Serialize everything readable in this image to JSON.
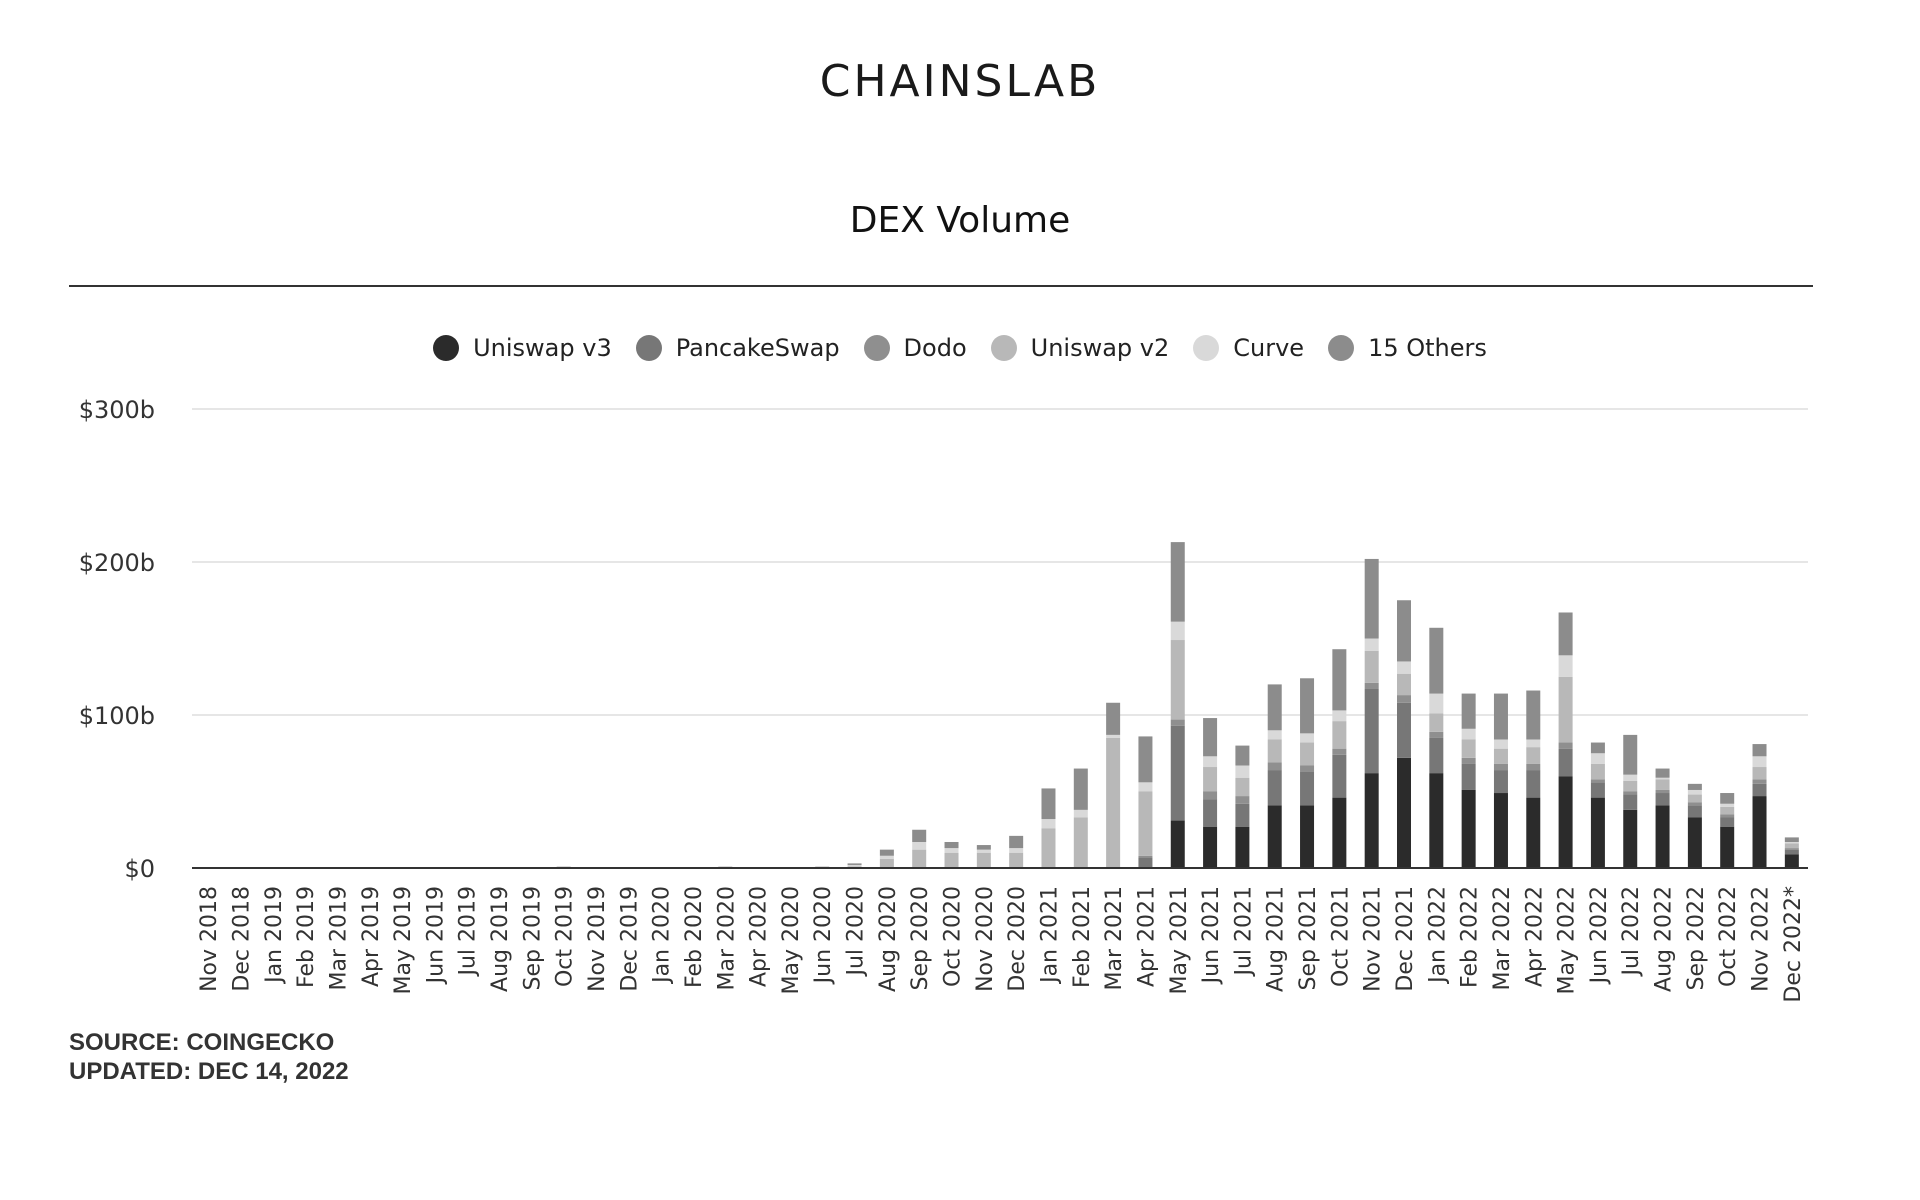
{
  "logo_text": "CHAINSLAB",
  "chart_data": {
    "type": "bar",
    "stacked": true,
    "title": "DEX Volume",
    "xlabel": "",
    "ylabel": "",
    "ylim": [
      0,
      300
    ],
    "yticks": [
      0,
      100,
      200,
      300
    ],
    "ytick_labels": [
      "$0",
      "$100b",
      "$200b",
      "$300b"
    ],
    "grid": true,
    "legend_position": "top-center",
    "categories": [
      "Nov 2018",
      "Dec 2018",
      "Jan 2019",
      "Feb 2019",
      "Mar 2019",
      "Apr 2019",
      "May 2019",
      "Jun 2019",
      "Jul 2019",
      "Aug 2019",
      "Sep 2019",
      "Oct 2019",
      "Nov 2019",
      "Dec 2019",
      "Jan 2020",
      "Feb 2020",
      "Mar 2020",
      "Apr 2020",
      "May 2020",
      "Jun 2020",
      "Jul 2020",
      "Aug 2020",
      "Sep 2020",
      "Oct 2020",
      "Nov 2020",
      "Dec 2020",
      "Jan 2021",
      "Feb 2021",
      "Mar 2021",
      "Apr 2021",
      "May 2021",
      "Jun 2021",
      "Jul 2021",
      "Aug 2021",
      "Sep 2021",
      "Oct 2021",
      "Nov 2021",
      "Dec 2021",
      "Jan 2022",
      "Feb 2022",
      "Mar 2022",
      "Apr 2022",
      "May 2022",
      "Jun 2022",
      "Jul 2022",
      "Aug 2022",
      "Sep 2022",
      "Oct 2022",
      "Nov 2022",
      "Dec 2022*"
    ],
    "series": [
      {
        "name": "Uniswap v3",
        "color": "#2b2b2b",
        "values": [
          0,
          0,
          0,
          0,
          0,
          0,
          0,
          0,
          0,
          0,
          0,
          0,
          0,
          0,
          0,
          0,
          0,
          0,
          0,
          0,
          0,
          0,
          0,
          0,
          0,
          0,
          0,
          0,
          0,
          0,
          31,
          27,
          27,
          41,
          41,
          46,
          62,
          72,
          62,
          51,
          49,
          46,
          60,
          46,
          38,
          41,
          33,
          27,
          47,
          9
        ]
      },
      {
        "name": "PancakeSwap",
        "color": "#777777",
        "values": [
          0,
          0,
          0,
          0,
          0,
          0,
          0,
          0,
          0,
          0,
          0,
          0,
          0,
          0,
          0,
          0,
          0,
          0,
          0,
          0,
          0,
          0,
          0,
          0,
          0,
          0,
          0,
          0,
          0,
          7,
          62,
          18,
          15,
          23,
          22,
          28,
          55,
          36,
          23,
          17,
          15,
          18,
          18,
          10,
          10,
          8,
          8,
          6,
          8,
          3
        ]
      },
      {
        "name": "Dodo",
        "color": "#8f8f8f",
        "values": [
          0,
          0,
          0,
          0,
          0,
          0,
          0,
          0,
          0,
          0,
          0,
          0,
          0,
          0,
          0,
          0,
          0,
          0,
          0,
          0,
          0,
          0,
          0,
          0,
          0,
          0,
          0,
          0,
          0,
          1,
          4,
          5,
          5,
          5,
          4,
          4,
          4,
          5,
          4,
          4,
          4,
          4,
          4,
          2,
          2,
          2,
          2,
          2,
          3,
          1
        ]
      },
      {
        "name": "Uniswap v2",
        "color": "#b8b8b8",
        "values": [
          0,
          0,
          0,
          0,
          0,
          0,
          0,
          0,
          0,
          0,
          0,
          1,
          0,
          0,
          0,
          0,
          1,
          0,
          0,
          1,
          1,
          6,
          12,
          10,
          10,
          10,
          26,
          33,
          85,
          42,
          52,
          16,
          12,
          15,
          15,
          18,
          21,
          14,
          12,
          12,
          10,
          11,
          43,
          10,
          7,
          7,
          5,
          5,
          8,
          3
        ]
      },
      {
        "name": "Curve",
        "color": "#d9d9d9",
        "values": [
          0,
          0,
          0,
          0,
          0,
          0,
          0,
          0,
          0,
          0,
          0,
          0,
          0,
          0,
          0,
          0,
          0,
          0,
          0,
          0,
          1,
          2,
          5,
          3,
          2,
          3,
          6,
          5,
          2,
          6,
          12,
          7,
          8,
          6,
          6,
          7,
          8,
          8,
          13,
          7,
          6,
          5,
          14,
          7,
          4,
          1,
          3,
          2,
          7,
          1
        ]
      },
      {
        "name": "15 Others",
        "color": "#8c8c8c",
        "values": [
          0,
          0,
          0,
          0,
          0,
          0,
          0,
          0,
          0,
          0,
          0,
          0,
          0,
          0,
          0,
          0,
          0,
          0,
          0,
          0,
          1,
          4,
          8,
          4,
          3,
          8,
          20,
          27,
          21,
          30,
          52,
          25,
          13,
          30,
          36,
          40,
          52,
          40,
          43,
          23,
          30,
          32,
          28,
          7,
          26,
          6,
          4,
          7,
          8,
          3
        ]
      }
    ]
  },
  "footer": {
    "source": "SOURCE: COINGECKO",
    "updated": "UPDATED: DEC 14, 2022"
  }
}
